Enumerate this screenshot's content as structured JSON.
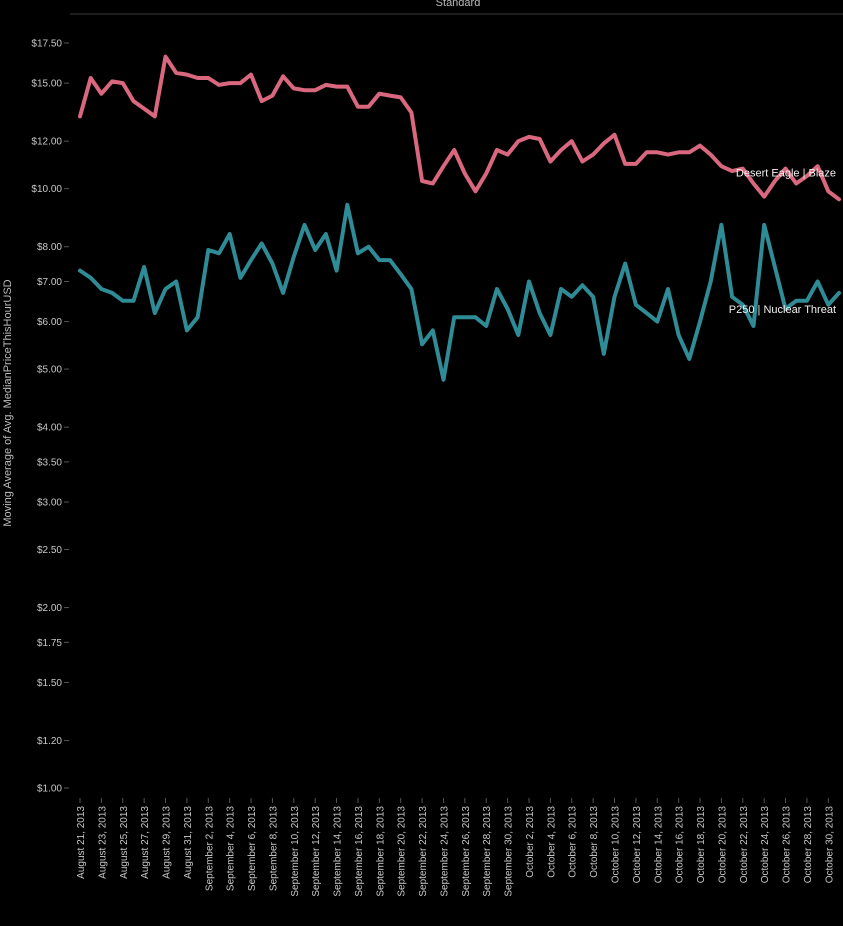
{
  "chart_data": {
    "type": "line",
    "title": "",
    "header": "Standard",
    "xlabel": "",
    "ylabel": "Moving Average of Avg. MedianPriceThisHourUSD",
    "y_scale": "log",
    "ylim": [
      1.0,
      18.0
    ],
    "y_ticks": [
      "$17.50",
      "$15.00",
      "$12.00",
      "$10.00",
      "$8.00",
      "$7.00",
      "$6.00",
      "$5.00",
      "$4.00",
      "$3.50",
      "$3.00",
      "$2.50",
      "$2.00",
      "$1.75",
      "$1.50",
      "$1.20",
      "$1.00"
    ],
    "y_tick_values": [
      17.5,
      15.0,
      12.0,
      10.0,
      8.0,
      7.0,
      6.0,
      5.0,
      4.0,
      3.5,
      3.0,
      2.5,
      2.0,
      1.75,
      1.5,
      1.2,
      1.0
    ],
    "x_ticks": [
      "August 21, 2013",
      "August 23, 2013",
      "August 25, 2013",
      "August 27, 2013",
      "August 29, 2013",
      "August 31, 2013",
      "September 2, 2013",
      "September 4, 2013",
      "September 6, 2013",
      "September 8, 2013",
      "September 10, 2013",
      "September 12, 2013",
      "September 14, 2013",
      "September 16, 2013",
      "September 18, 2013",
      "September 20, 2013",
      "September 22, 2013",
      "September 24, 2013",
      "September 26, 2013",
      "September 28, 2013",
      "September 30, 2013",
      "October 2, 2013",
      "October 4, 2013",
      "October 6, 2013",
      "October 8, 2013",
      "October 10, 2013",
      "October 12, 2013",
      "October 14, 2013",
      "October 16, 2013",
      "October 18, 2013",
      "October 20, 2013",
      "October 22, 2013",
      "October 24, 2013",
      "October 26, 2013",
      "October 28, 2013",
      "October 30, 2013"
    ],
    "x_start": "2013-08-21",
    "x_end": "2013-10-31",
    "grid": false,
    "series": [
      {
        "name": "Desert Eagle | Blaze",
        "color": "#d9687f",
        "points": [
          [
            "2013-08-21",
            13.2
          ],
          [
            "2013-08-22",
            15.3
          ],
          [
            "2013-08-23",
            14.4
          ],
          [
            "2013-08-24",
            15.1
          ],
          [
            "2013-08-25",
            15.0
          ],
          [
            "2013-08-26",
            14.0
          ],
          [
            "2013-08-27",
            13.6
          ],
          [
            "2013-08-28",
            13.2
          ],
          [
            "2013-08-29",
            16.6
          ],
          [
            "2013-08-30",
            15.6
          ],
          [
            "2013-08-31",
            15.5
          ],
          [
            "2013-09-01",
            15.3
          ],
          [
            "2013-09-02",
            15.3
          ],
          [
            "2013-09-03",
            14.9
          ],
          [
            "2013-09-04",
            15.0
          ],
          [
            "2013-09-05",
            15.0
          ],
          [
            "2013-09-06",
            15.5
          ],
          [
            "2013-09-07",
            14.0
          ],
          [
            "2013-09-08",
            14.3
          ],
          [
            "2013-09-09",
            15.4
          ],
          [
            "2013-09-10",
            14.7
          ],
          [
            "2013-09-11",
            14.6
          ],
          [
            "2013-09-12",
            14.6
          ],
          [
            "2013-09-13",
            14.9
          ],
          [
            "2013-09-14",
            14.8
          ],
          [
            "2013-09-15",
            14.8
          ],
          [
            "2013-09-16",
            13.7
          ],
          [
            "2013-09-17",
            13.7
          ],
          [
            "2013-09-18",
            14.4
          ],
          [
            "2013-09-19",
            14.3
          ],
          [
            "2013-09-20",
            14.2
          ],
          [
            "2013-09-21",
            13.4
          ],
          [
            "2013-09-22",
            10.3
          ],
          [
            "2013-09-23",
            10.2
          ],
          [
            "2013-09-24",
            10.9
          ],
          [
            "2013-09-25",
            11.6
          ],
          [
            "2013-09-26",
            10.6
          ],
          [
            "2013-09-27",
            9.9
          ],
          [
            "2013-09-28",
            10.6
          ],
          [
            "2013-09-29",
            11.6
          ],
          [
            "2013-09-30",
            11.4
          ],
          [
            "2013-10-01",
            12.0
          ],
          [
            "2013-10-02",
            12.2
          ],
          [
            "2013-10-03",
            12.1
          ],
          [
            "2013-10-04",
            11.1
          ],
          [
            "2013-10-05",
            11.6
          ],
          [
            "2013-10-06",
            12.0
          ],
          [
            "2013-10-07",
            11.1
          ],
          [
            "2013-10-08",
            11.4
          ],
          [
            "2013-10-09",
            11.9
          ],
          [
            "2013-10-10",
            12.3
          ],
          [
            "2013-10-11",
            11.0
          ],
          [
            "2013-10-12",
            11.0
          ],
          [
            "2013-10-13",
            11.5
          ],
          [
            "2013-10-14",
            11.5
          ],
          [
            "2013-10-15",
            11.4
          ],
          [
            "2013-10-16",
            11.5
          ],
          [
            "2013-10-17",
            11.5
          ],
          [
            "2013-10-18",
            11.8
          ],
          [
            "2013-10-19",
            11.4
          ],
          [
            "2013-10-20",
            10.9
          ],
          [
            "2013-10-21",
            10.7
          ],
          [
            "2013-10-22",
            10.8
          ],
          [
            "2013-10-23",
            10.2
          ],
          [
            "2013-10-24",
            9.7
          ],
          [
            "2013-10-25",
            10.3
          ],
          [
            "2013-10-26",
            10.8
          ],
          [
            "2013-10-27",
            10.2
          ],
          [
            "2013-10-28",
            10.5
          ],
          [
            "2013-10-29",
            10.9
          ],
          [
            "2013-10-30",
            9.9
          ],
          [
            "2013-10-31",
            9.6
          ]
        ]
      },
      {
        "name": "P250 | Nuclear Threat",
        "color": "#2f8c96",
        "points": [
          [
            "2013-08-21",
            7.3
          ],
          [
            "2013-08-22",
            7.1
          ],
          [
            "2013-08-23",
            6.8
          ],
          [
            "2013-08-24",
            6.7
          ],
          [
            "2013-08-25",
            6.5
          ],
          [
            "2013-08-26",
            6.5
          ],
          [
            "2013-08-27",
            7.4
          ],
          [
            "2013-08-28",
            6.2
          ],
          [
            "2013-08-29",
            6.8
          ],
          [
            "2013-08-30",
            7.0
          ],
          [
            "2013-08-31",
            5.8
          ],
          [
            "2013-09-01",
            6.1
          ],
          [
            "2013-09-02",
            7.9
          ],
          [
            "2013-09-03",
            7.8
          ],
          [
            "2013-09-04",
            8.4
          ],
          [
            "2013-09-05",
            7.1
          ],
          [
            "2013-09-06",
            7.6
          ],
          [
            "2013-09-07",
            8.1
          ],
          [
            "2013-09-08",
            7.5
          ],
          [
            "2013-09-09",
            6.7
          ],
          [
            "2013-09-10",
            7.7
          ],
          [
            "2013-09-11",
            8.7
          ],
          [
            "2013-09-12",
            7.9
          ],
          [
            "2013-09-13",
            8.4
          ],
          [
            "2013-09-14",
            7.3
          ],
          [
            "2013-09-15",
            9.4
          ],
          [
            "2013-09-16",
            7.8
          ],
          [
            "2013-09-17",
            8.0
          ],
          [
            "2013-09-18",
            7.6
          ],
          [
            "2013-09-19",
            7.6
          ],
          [
            "2013-09-20",
            7.2
          ],
          [
            "2013-09-21",
            6.8
          ],
          [
            "2013-09-22",
            5.5
          ],
          [
            "2013-09-23",
            5.8
          ],
          [
            "2013-09-24",
            4.8
          ],
          [
            "2013-09-25",
            6.1
          ],
          [
            "2013-09-26",
            6.1
          ],
          [
            "2013-09-27",
            6.1
          ],
          [
            "2013-09-28",
            5.9
          ],
          [
            "2013-09-29",
            6.8
          ],
          [
            "2013-09-30",
            6.3
          ],
          [
            "2013-10-01",
            5.7
          ],
          [
            "2013-10-02",
            7.0
          ],
          [
            "2013-10-03",
            6.2
          ],
          [
            "2013-10-04",
            5.7
          ],
          [
            "2013-10-05",
            6.8
          ],
          [
            "2013-10-06",
            6.6
          ],
          [
            "2013-10-07",
            6.9
          ],
          [
            "2013-10-08",
            6.6
          ],
          [
            "2013-10-09",
            5.3
          ],
          [
            "2013-10-10",
            6.6
          ],
          [
            "2013-10-11",
            7.5
          ],
          [
            "2013-10-12",
            6.4
          ],
          [
            "2013-10-13",
            6.2
          ],
          [
            "2013-10-14",
            6.0
          ],
          [
            "2013-10-15",
            6.8
          ],
          [
            "2013-10-16",
            5.7
          ],
          [
            "2013-10-17",
            5.2
          ],
          [
            "2013-10-18",
            6.0
          ],
          [
            "2013-10-19",
            7.0
          ],
          [
            "2013-10-20",
            8.7
          ],
          [
            "2013-10-21",
            6.6
          ],
          [
            "2013-10-22",
            6.4
          ],
          [
            "2013-10-23",
            5.9
          ],
          [
            "2013-10-24",
            8.7
          ],
          [
            "2013-10-25",
            7.4
          ],
          [
            "2013-10-26",
            6.3
          ],
          [
            "2013-10-27",
            6.5
          ],
          [
            "2013-10-28",
            6.5
          ],
          [
            "2013-10-29",
            7.0
          ],
          [
            "2013-10-30",
            6.4
          ],
          [
            "2013-10-31",
            6.7
          ]
        ]
      }
    ]
  }
}
